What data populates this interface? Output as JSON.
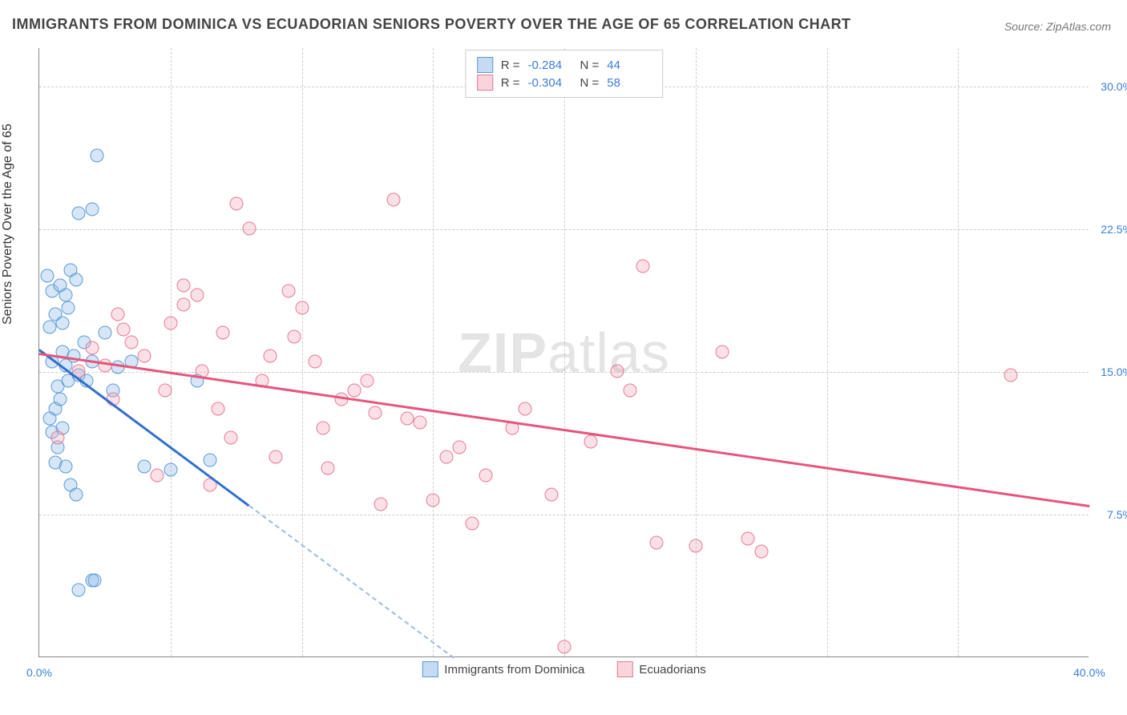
{
  "title": "IMMIGRANTS FROM DOMINICA VS ECUADORIAN SENIORS POVERTY OVER THE AGE OF 65 CORRELATION CHART",
  "source_label": "Source: ",
  "source_name": "ZipAtlas.com",
  "ylabel": "Seniors Poverty Over the Age of 65",
  "watermark_part1": "ZIP",
  "watermark_part2": "atlas",
  "chart": {
    "type": "scatter",
    "background_color": "#ffffff",
    "grid_color": "#cccccc",
    "axis_color": "#888888",
    "xlim": [
      0,
      40
    ],
    "ylim": [
      0,
      32
    ],
    "xticks": [
      0,
      40
    ],
    "xtick_labels": [
      "0.0%",
      "40.0%"
    ],
    "xgrid": [
      5,
      10,
      15,
      20,
      25,
      30,
      35
    ],
    "yticks": [
      7.5,
      15.0,
      22.5,
      30.0
    ],
    "ytick_labels": [
      "7.5%",
      "15.0%",
      "22.5%",
      "30.0%"
    ],
    "marker_size": 17,
    "marker_opacity": 0.35,
    "series": [
      {
        "name": "Immigrants from Dominica",
        "color_fill": "#89b7e4",
        "color_stroke": "#5a9bd5",
        "r_value": "-0.284",
        "n_value": "44",
        "trendline": {
          "x1": 0,
          "y1": 16.2,
          "x2": 8.0,
          "y2": 8.0,
          "dashed_x2": 15.8,
          "dashed_y2": 0
        },
        "points": [
          [
            0.3,
            20.0
          ],
          [
            0.5,
            19.2
          ],
          [
            0.6,
            18.0
          ],
          [
            0.4,
            17.3
          ],
          [
            0.8,
            19.5
          ],
          [
            1.0,
            19.0
          ],
          [
            1.2,
            20.3
          ],
          [
            1.5,
            23.3
          ],
          [
            2.0,
            23.5
          ],
          [
            2.2,
            26.3
          ],
          [
            0.5,
            15.5
          ],
          [
            0.7,
            14.2
          ],
          [
            0.9,
            16.0
          ],
          [
            1.0,
            15.3
          ],
          [
            1.1,
            14.5
          ],
          [
            0.6,
            13.0
          ],
          [
            0.8,
            13.5
          ],
          [
            0.4,
            12.5
          ],
          [
            0.5,
            11.8
          ],
          [
            0.7,
            11.0
          ],
          [
            0.9,
            12.0
          ],
          [
            1.0,
            10.0
          ],
          [
            1.2,
            9.0
          ],
          [
            1.4,
            8.5
          ],
          [
            1.5,
            3.5
          ],
          [
            2.0,
            4.0
          ],
          [
            2.1,
            4.0
          ],
          [
            1.3,
            15.8
          ],
          [
            1.5,
            14.8
          ],
          [
            1.8,
            14.5
          ],
          [
            2.0,
            15.5
          ],
          [
            2.5,
            17.0
          ],
          [
            3.0,
            15.2
          ],
          [
            2.8,
            14.0
          ],
          [
            0.9,
            17.5
          ],
          [
            1.1,
            18.3
          ],
          [
            1.4,
            19.8
          ],
          [
            4.0,
            10.0
          ],
          [
            5.0,
            9.8
          ],
          [
            6.5,
            10.3
          ],
          [
            6.0,
            14.5
          ],
          [
            3.5,
            15.5
          ],
          [
            1.7,
            16.5
          ],
          [
            0.6,
            10.2
          ]
        ]
      },
      {
        "name": "Ecuadorians",
        "color_fill": "#f4a9ba",
        "color_stroke": "#e57b94",
        "r_value": "-0.304",
        "n_value": "58",
        "trendline": {
          "x1": 0,
          "y1": 16.0,
          "x2": 40,
          "y2": 8.0
        },
        "points": [
          [
            0.7,
            11.5
          ],
          [
            1.5,
            15.0
          ],
          [
            2.0,
            16.2
          ],
          [
            2.5,
            15.3
          ],
          [
            3.0,
            18.0
          ],
          [
            3.5,
            16.5
          ],
          [
            4.0,
            15.8
          ],
          [
            4.5,
            9.5
          ],
          [
            5.0,
            17.5
          ],
          [
            5.5,
            18.5
          ],
          [
            6.0,
            19.0
          ],
          [
            6.5,
            9.0
          ],
          [
            7.0,
            17.0
          ],
          [
            7.5,
            23.8
          ],
          [
            8.0,
            22.5
          ],
          [
            8.5,
            14.5
          ],
          [
            9.0,
            10.5
          ],
          [
            9.5,
            19.2
          ],
          [
            10.0,
            18.3
          ],
          [
            10.5,
            15.5
          ],
          [
            10.8,
            12.0
          ],
          [
            11.5,
            13.5
          ],
          [
            12.0,
            14.0
          ],
          [
            12.5,
            14.5
          ],
          [
            13.0,
            8.0
          ],
          [
            13.5,
            24.0
          ],
          [
            14.0,
            12.5
          ],
          [
            14.5,
            12.3
          ],
          [
            15.0,
            8.2
          ],
          [
            15.5,
            10.5
          ],
          [
            16.0,
            11.0
          ],
          [
            16.5,
            7.0
          ],
          [
            17.0,
            9.5
          ],
          [
            18.0,
            12.0
          ],
          [
            18.5,
            13.0
          ],
          [
            20.0,
            0.5
          ],
          [
            19.5,
            8.5
          ],
          [
            21.0,
            11.3
          ],
          [
            22.0,
            15.0
          ],
          [
            22.5,
            14.0
          ],
          [
            23.0,
            20.5
          ],
          [
            23.5,
            6.0
          ],
          [
            25.0,
            5.8
          ],
          [
            26.0,
            16.0
          ],
          [
            27.0,
            6.2
          ],
          [
            27.5,
            5.5
          ],
          [
            5.5,
            19.5
          ],
          [
            4.8,
            14.0
          ],
          [
            3.2,
            17.2
          ],
          [
            2.8,
            13.5
          ],
          [
            6.2,
            15.0
          ],
          [
            7.3,
            11.5
          ],
          [
            8.8,
            15.8
          ],
          [
            37.0,
            14.8
          ],
          [
            11.0,
            9.9
          ],
          [
            12.8,
            12.8
          ],
          [
            9.7,
            16.8
          ],
          [
            6.8,
            13.0
          ]
        ]
      }
    ]
  },
  "legend_top": {
    "r_label": "R =",
    "n_label": "N ="
  },
  "legend_bottom": [
    {
      "label": "Immigrants from Dominica",
      "color": "blue"
    },
    {
      "label": "Ecuadorians",
      "color": "pink"
    }
  ]
}
